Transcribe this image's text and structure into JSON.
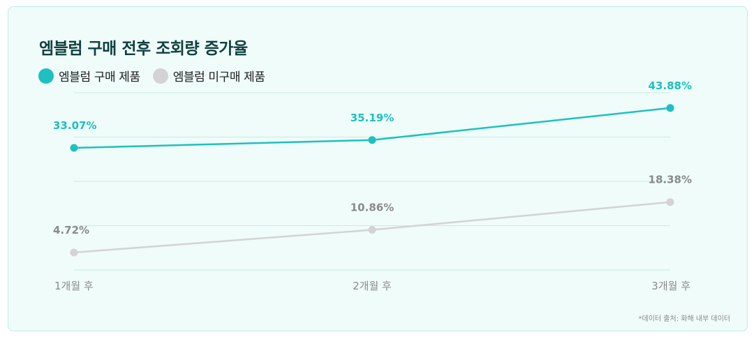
{
  "title": "엠블럼 구매 전후 조회량 증가율",
  "source_note": "*데이터 출처: 화해 내부 데이터",
  "colors": {
    "purchased": "#1ec0c0",
    "not_purchased": "#d3d3d3",
    "not_purchased_label": "#8a8a8a",
    "gridline": "#c6ece6",
    "axis_label": "#8a8a8a"
  },
  "legend": [
    {
      "label": "엠블럼 구매 제품",
      "color": "#1ec0c0"
    },
    {
      "label": "엠블럼 미구매 제품",
      "color": "#d3d3d3"
    }
  ],
  "chart_data": {
    "type": "line",
    "title": "엠블럼 구매 전후 조회량 증가율",
    "categories": [
      "1개월 후",
      "2개월 후",
      "3개월 후"
    ],
    "series": [
      {
        "name": "엠블럼 구매 제품",
        "values": [
          33.07,
          35.19,
          43.88
        ],
        "labels": [
          "33.07%",
          "35.19%",
          "43.88%"
        ]
      },
      {
        "name": "엠블럼 미구매 제품",
        "values": [
          4.72,
          10.86,
          18.38
        ],
        "labels": [
          "4.72%",
          "10.86%",
          "18.38%"
        ]
      }
    ],
    "ylim": [
      0,
      48
    ],
    "grid": true,
    "legend_position": "top-left"
  }
}
